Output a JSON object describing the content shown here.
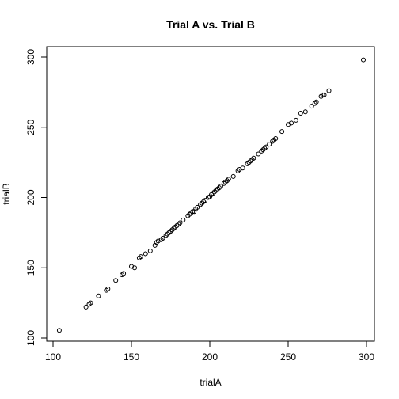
{
  "chart_data": {
    "type": "scatter",
    "title": "Trial A vs. Trial B",
    "xlabel": "trialA",
    "ylabel": "trialB",
    "xlim": [
      100,
      300
    ],
    "ylim": [
      100,
      300
    ],
    "xticks": [
      100,
      150,
      200,
      250,
      300
    ],
    "yticks": [
      100,
      150,
      200,
      250,
      300
    ],
    "points": [
      [
        104,
        105.5
      ],
      [
        121,
        122
      ],
      [
        123,
        124
      ],
      [
        124,
        125
      ],
      [
        129,
        130
      ],
      [
        134,
        134
      ],
      [
        135,
        135
      ],
      [
        140,
        141
      ],
      [
        144,
        145
      ],
      [
        145,
        146
      ],
      [
        150,
        151
      ],
      [
        152,
        150
      ],
      [
        155,
        157
      ],
      [
        156,
        158
      ],
      [
        159,
        160
      ],
      [
        162,
        162
      ],
      [
        165,
        166
      ],
      [
        166,
        168
      ],
      [
        167,
        169
      ],
      [
        169,
        170
      ],
      [
        170,
        171
      ],
      [
        172,
        173
      ],
      [
        173,
        174
      ],
      [
        174,
        175
      ],
      [
        175,
        176
      ],
      [
        176,
        177
      ],
      [
        177,
        178
      ],
      [
        178,
        179
      ],
      [
        179,
        180
      ],
      [
        180,
        181
      ],
      [
        181,
        182
      ],
      [
        183,
        184
      ],
      [
        186,
        187
      ],
      [
        187,
        188
      ],
      [
        188,
        189
      ],
      [
        189,
        190
      ],
      [
        190,
        190
      ],
      [
        191,
        192
      ],
      [
        192,
        193
      ],
      [
        194,
        195
      ],
      [
        195,
        196
      ],
      [
        196,
        197
      ],
      [
        197,
        198
      ],
      [
        199,
        200
      ],
      [
        200,
        200.5
      ],
      [
        201,
        202
      ],
      [
        202,
        203
      ],
      [
        203,
        204
      ],
      [
        204,
        205
      ],
      [
        205,
        206
      ],
      [
        206,
        207
      ],
      [
        207,
        208
      ],
      [
        209,
        210
      ],
      [
        210,
        211
      ],
      [
        211,
        212
      ],
      [
        212,
        213
      ],
      [
        215,
        215
      ],
      [
        218,
        219
      ],
      [
        219,
        220
      ],
      [
        221,
        221
      ],
      [
        224,
        224
      ],
      [
        225,
        225
      ],
      [
        226,
        226
      ],
      [
        227,
        227
      ],
      [
        228,
        228
      ],
      [
        231,
        231
      ],
      [
        233,
        233
      ],
      [
        234,
        234
      ],
      [
        235,
        235
      ],
      [
        236,
        236
      ],
      [
        238,
        238
      ],
      [
        240,
        240
      ],
      [
        241,
        241
      ],
      [
        242,
        242
      ],
      [
        246,
        247
      ],
      [
        250,
        252
      ],
      [
        252,
        253
      ],
      [
        255,
        255
      ],
      [
        258,
        260
      ],
      [
        261,
        261
      ],
      [
        265,
        265
      ],
      [
        267,
        267
      ],
      [
        268,
        268
      ],
      [
        271,
        272
      ],
      [
        272,
        273
      ],
      [
        273,
        273
      ],
      [
        276,
        276
      ],
      [
        298,
        298
      ]
    ]
  }
}
